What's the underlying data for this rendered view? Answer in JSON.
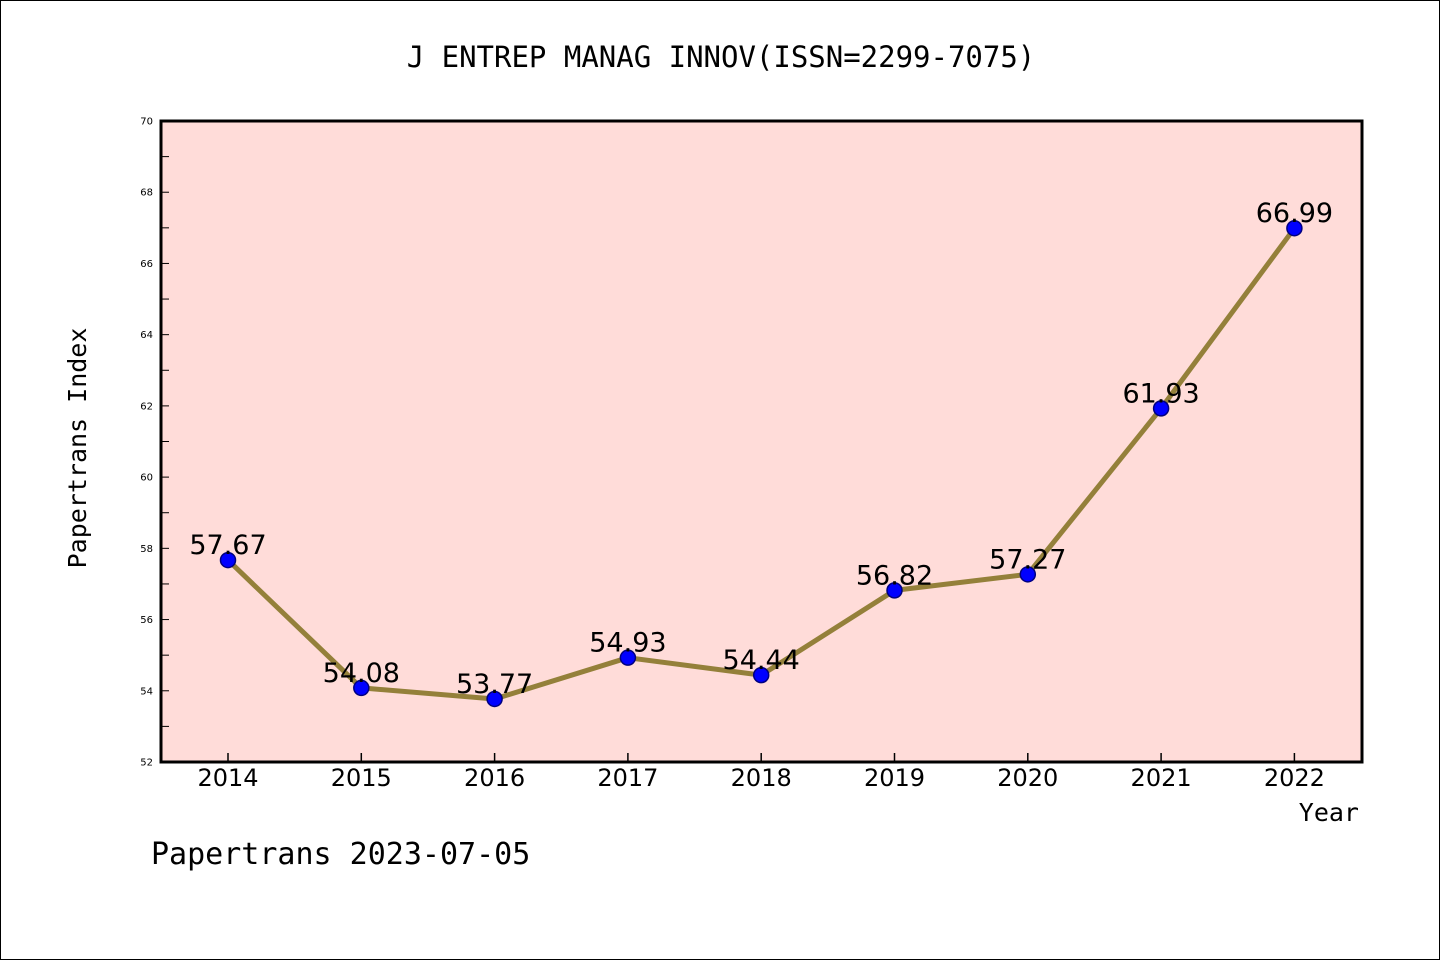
{
  "chart_data": {
    "type": "line",
    "title": "J ENTREP MANAG INNOV(ISSN=2299-7075)",
    "xlabel": "Year",
    "ylabel": "Papertrans Index",
    "footer": "Papertrans 2023-07-05",
    "categories": [
      "2014",
      "2015",
      "2016",
      "2017",
      "2018",
      "2019",
      "2020",
      "2021",
      "2022"
    ],
    "values": [
      57.67,
      54.08,
      53.77,
      54.93,
      54.44,
      56.82,
      57.27,
      61.93,
      66.99
    ],
    "data_labels": [
      "57.67",
      "54.08",
      "53.77",
      "54.93",
      "54.44",
      "56.82",
      "57.27",
      "61.93",
      "66.99"
    ],
    "ylim": [
      52,
      70
    ],
    "yticks": [
      52,
      54,
      56,
      58,
      60,
      62,
      64,
      66,
      68,
      70
    ],
    "grid": false,
    "colors": {
      "plot_background": "#ffdcd9",
      "line": "#94803a",
      "marker": "#0000ff",
      "marker_edge": "#000080",
      "axes": "#000000"
    }
  }
}
